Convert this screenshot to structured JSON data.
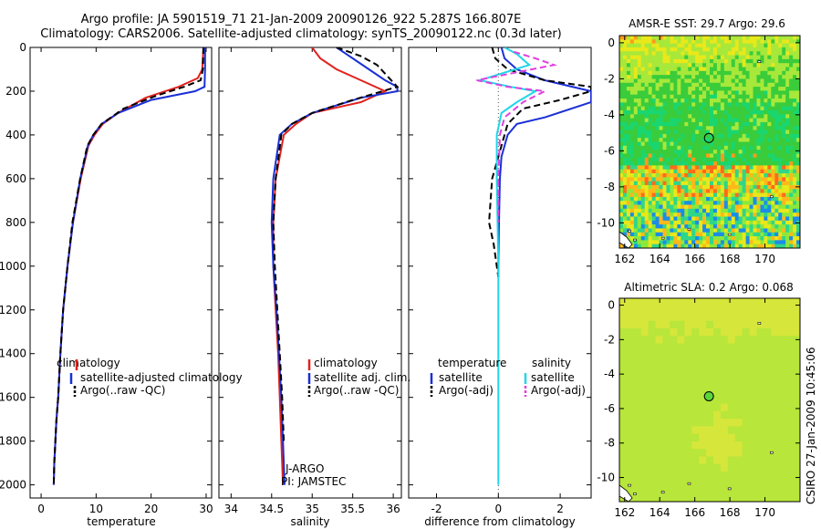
{
  "header": {
    "title_line1": "Argo profile: JA 5901519_71 21-Jan-2009 20090126_922 5.287S 166.807E",
    "title_line2": "Climatology: CARS2006. Satellite-adjusted climatology: synTS_20090122.nc (0.3d later)"
  },
  "colors": {
    "climatology": "#e0221e",
    "satellite": "#1a2fd6",
    "argo": "#000000",
    "argo_salinity": "#e040e0",
    "satellite_salinity": "#22d6e6"
  },
  "chart_data": [
    {
      "type": "line",
      "id": "temperature",
      "xlabel": "temperature",
      "ylabel": "",
      "xlim": [
        -2,
        31
      ],
      "ylim": [
        2060,
        0
      ],
      "xticks": [
        0,
        10,
        20,
        30
      ],
      "yticks": [
        0,
        200,
        400,
        600,
        800,
        1000,
        1200,
        1400,
        1600,
        1800,
        2000
      ],
      "legend": [
        "climatology",
        "satellite-adjusted climatology",
        "Argo(..raw -QC)"
      ],
      "legend_location": "lower-center",
      "series": [
        {
          "name": "climatology",
          "color": "#e0221e",
          "style": "solid",
          "x": [
            29.5,
            29.3,
            28.5,
            25.0,
            19.0,
            14.0,
            11.2,
            9.7,
            8.6,
            7.2,
            5.8,
            4.8,
            4.0,
            3.5,
            3.1,
            2.8,
            2.6,
            2.4,
            2.3
          ],
          "y": [
            0,
            100,
            140,
            180,
            230,
            300,
            350,
            400,
            450,
            600,
            800,
            1000,
            1200,
            1400,
            1600,
            1700,
            1800,
            1900,
            2000
          ]
        },
        {
          "name": "satellite-adjusted climatology",
          "color": "#1a2fd6",
          "style": "solid",
          "x": [
            29.8,
            29.8,
            29.7,
            28.0,
            20.0,
            14.0,
            11.0,
            9.5,
            8.5,
            7.1,
            5.8,
            4.8,
            4.0,
            3.5,
            3.1,
            2.8,
            2.6,
            2.4,
            2.3
          ],
          "y": [
            0,
            100,
            180,
            200,
            240,
            300,
            350,
            400,
            450,
            600,
            800,
            1000,
            1200,
            1400,
            1600,
            1700,
            1800,
            1900,
            2000
          ]
        },
        {
          "name": "Argo(..raw -QC)",
          "color": "#000000",
          "style": "dashed",
          "x": [
            29.5,
            29.4,
            29.0,
            26.0,
            21.0,
            15.0,
            11.0,
            9.5,
            8.4,
            7.1,
            5.7,
            4.8,
            4.0,
            3.5,
            3.1,
            2.8,
            2.6,
            2.4,
            2.3
          ],
          "y": [
            0,
            100,
            150,
            180,
            220,
            280,
            350,
            400,
            450,
            600,
            800,
            1000,
            1200,
            1400,
            1600,
            1700,
            1800,
            1900,
            2000
          ]
        }
      ]
    },
    {
      "type": "line",
      "id": "salinity",
      "xlabel": "salinity",
      "ylabel": "",
      "xlim": [
        33.85,
        36.1
      ],
      "ylim": [
        2060,
        0
      ],
      "xticks": [
        34,
        34.5,
        35,
        35.5,
        36
      ],
      "legend": [
        "climatology",
        "satellite adj. clim.",
        "Argo(..raw -QC)"
      ],
      "legend_location": "lower-right",
      "annotation_line1": "J-ARGO",
      "annotation_line2": "PI: JAMSTEC",
      "series": [
        {
          "name": "climatology",
          "color": "#e0221e",
          "style": "solid",
          "x": [
            35.0,
            35.1,
            35.3,
            35.6,
            35.9,
            35.6,
            35.0,
            34.8,
            34.65,
            34.55,
            34.52,
            34.52,
            34.55,
            34.58,
            34.6,
            34.62,
            34.63,
            34.64
          ],
          "y": [
            0,
            50,
            100,
            150,
            200,
            250,
            300,
            350,
            400,
            600,
            800,
            1000,
            1200,
            1400,
            1600,
            1800,
            1900,
            2000
          ]
        },
        {
          "name": "satellite adj. clim.",
          "color": "#1a2fd6",
          "style": "solid",
          "x": [
            35.3,
            35.5,
            35.7,
            35.9,
            36.05,
            36.05,
            35.6,
            35.0,
            34.75,
            34.6,
            34.52,
            34.5,
            34.52,
            34.56,
            34.59,
            34.62,
            34.64,
            34.65,
            34.66
          ],
          "y": [
            0,
            50,
            100,
            150,
            180,
            200,
            230,
            300,
            350,
            400,
            600,
            800,
            1000,
            1200,
            1400,
            1600,
            1800,
            1900,
            2000
          ]
        },
        {
          "name": "Argo(..raw -QC)",
          "color": "#000000",
          "style": "dashed",
          "x": [
            35.3,
            35.6,
            35.8,
            35.9,
            36.05,
            35.5,
            35.0,
            34.75,
            34.62,
            34.55,
            34.52,
            34.54,
            34.57,
            34.6,
            34.63,
            34.65
          ],
          "y": [
            0,
            40,
            80,
            120,
            180,
            240,
            300,
            350,
            400,
            600,
            800,
            1000,
            1200,
            1400,
            1600,
            1800
          ]
        }
      ]
    },
    {
      "type": "line",
      "id": "difference",
      "xlabel": "difference from climatology",
      "ylabel": "",
      "xlim": [
        -2.9,
        3.0
      ],
      "ylim": [
        2060,
        0
      ],
      "xticks": [
        -2,
        0,
        2
      ],
      "legend_temperature_header": "temperature",
      "legend_salinity_header": "salinity",
      "legend_temperature": [
        "satellite",
        "Argo(-adj)"
      ],
      "legend_salinity": [
        "satellite",
        "Argo(-adj)"
      ],
      "series": [
        {
          "name": "temperature satellite",
          "color": "#1a2fd6",
          "style": "solid",
          "x": [
            0.1,
            0.2,
            0.6,
            1.5,
            3.0,
            3.0,
            1.5,
            0.6,
            0.3,
            0.1,
            0.05,
            0.02,
            0.0,
            0.0
          ],
          "y": [
            0,
            50,
            100,
            150,
            200,
            250,
            320,
            350,
            400,
            500,
            600,
            800,
            1000,
            1050
          ]
        },
        {
          "name": "temperature Argo(-adj)",
          "color": "#000000",
          "style": "dashed",
          "x": [
            -0.2,
            -0.1,
            0.3,
            1.5,
            3.0,
            3.0,
            2.0,
            0.8,
            0.3,
            0.0,
            -0.2,
            -0.3,
            -0.15,
            -0.05,
            0.0
          ],
          "y": [
            0,
            50,
            100,
            150,
            180,
            200,
            240,
            280,
            350,
            500,
            600,
            800,
            900,
            1000,
            1050
          ]
        },
        {
          "name": "salinity satellite",
          "color": "#22d6e6",
          "style": "solid",
          "x": [
            0.2,
            0.6,
            1.0,
            -0.6,
            0.4,
            1.2,
            0.6,
            0.1,
            -0.05,
            -0.05,
            0.0,
            0.0,
            0.0,
            0.0
          ],
          "y": [
            0,
            30,
            80,
            150,
            180,
            200,
            250,
            300,
            400,
            600,
            1000,
            1400,
            1800,
            2000
          ]
        },
        {
          "name": "salinity Argo(-adj)",
          "color": "#e040e0",
          "style": "dashed",
          "x": [
            0.5,
            1.2,
            1.8,
            -0.7,
            0.3,
            1.5,
            0.8,
            0.2,
            0.05,
            0.0,
            0.0
          ],
          "y": [
            20,
            50,
            80,
            150,
            180,
            200,
            250,
            320,
            400,
            600,
            800
          ]
        }
      ]
    },
    {
      "type": "heatmap",
      "id": "sst-map",
      "title": "AMSR-E SST: 29.7 Argo: 29.6",
      "xlim": [
        161.7,
        172
      ],
      "ylim": [
        -11.4,
        0.4
      ],
      "xticks": [
        162,
        164,
        166,
        168,
        170
      ],
      "yticks": [
        0,
        -2,
        -4,
        -6,
        -8,
        -10
      ],
      "marker": {
        "lon": 166.807,
        "lat": -5.287
      }
    },
    {
      "type": "heatmap",
      "id": "sla-map",
      "title": "Altimetric SLA: 0.2 Argo: 0.068",
      "xlim": [
        161.7,
        172
      ],
      "ylim": [
        -11.4,
        0.4
      ],
      "xticks": [
        162,
        164,
        166,
        168,
        170
      ],
      "yticks": [
        0,
        -2,
        -4,
        -6,
        -8,
        -10
      ],
      "marker": {
        "lon": 166.807,
        "lat": -5.287
      }
    }
  ],
  "footer": {
    "credit": "CSIRO 27-Jan-2009 10:45:06"
  }
}
